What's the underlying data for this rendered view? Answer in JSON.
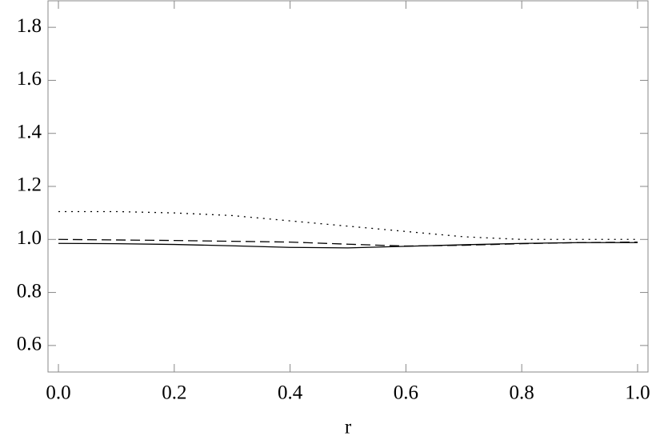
{
  "chart_data": {
    "type": "line",
    "x_label": "r",
    "x": [
      0,
      0.1,
      0.2,
      0.3,
      0.4,
      0.5,
      0.6,
      0.7,
      0.8,
      0.9,
      1.0
    ],
    "series": [
      {
        "color": "#000000",
        "dash": "dotted",
        "values": [
          1.105,
          1.105,
          1.1,
          1.09,
          1.07,
          1.05,
          1.03,
          1.01,
          1.0,
          1.0,
          1.0
        ]
      },
      {
        "color": "#000000",
        "dash": "dashed",
        "values": [
          1.0,
          0.998,
          0.996,
          0.993,
          0.99,
          0.982,
          0.975,
          0.978,
          0.984,
          0.988,
          0.99
        ]
      },
      {
        "color": "#000000",
        "dash": "solid",
        "values": [
          0.985,
          0.984,
          0.981,
          0.976,
          0.97,
          0.968,
          0.974,
          0.98,
          0.985,
          0.988,
          0.988
        ]
      }
    ],
    "xlim": [
      -0.018,
      1.018
    ],
    "ylim": [
      0.5,
      1.9
    ],
    "xticks": [
      {
        "value": 0,
        "label": "0.0"
      },
      0.2,
      0.4,
      0.6,
      0.8,
      {
        "value": 1,
        "label": "1.0"
      }
    ],
    "yticks": [
      0.6,
      0.8,
      {
        "value": 1,
        "label": "1.0"
      },
      1.2,
      1.4,
      1.6,
      1.8
    ],
    "grid": false
  }
}
